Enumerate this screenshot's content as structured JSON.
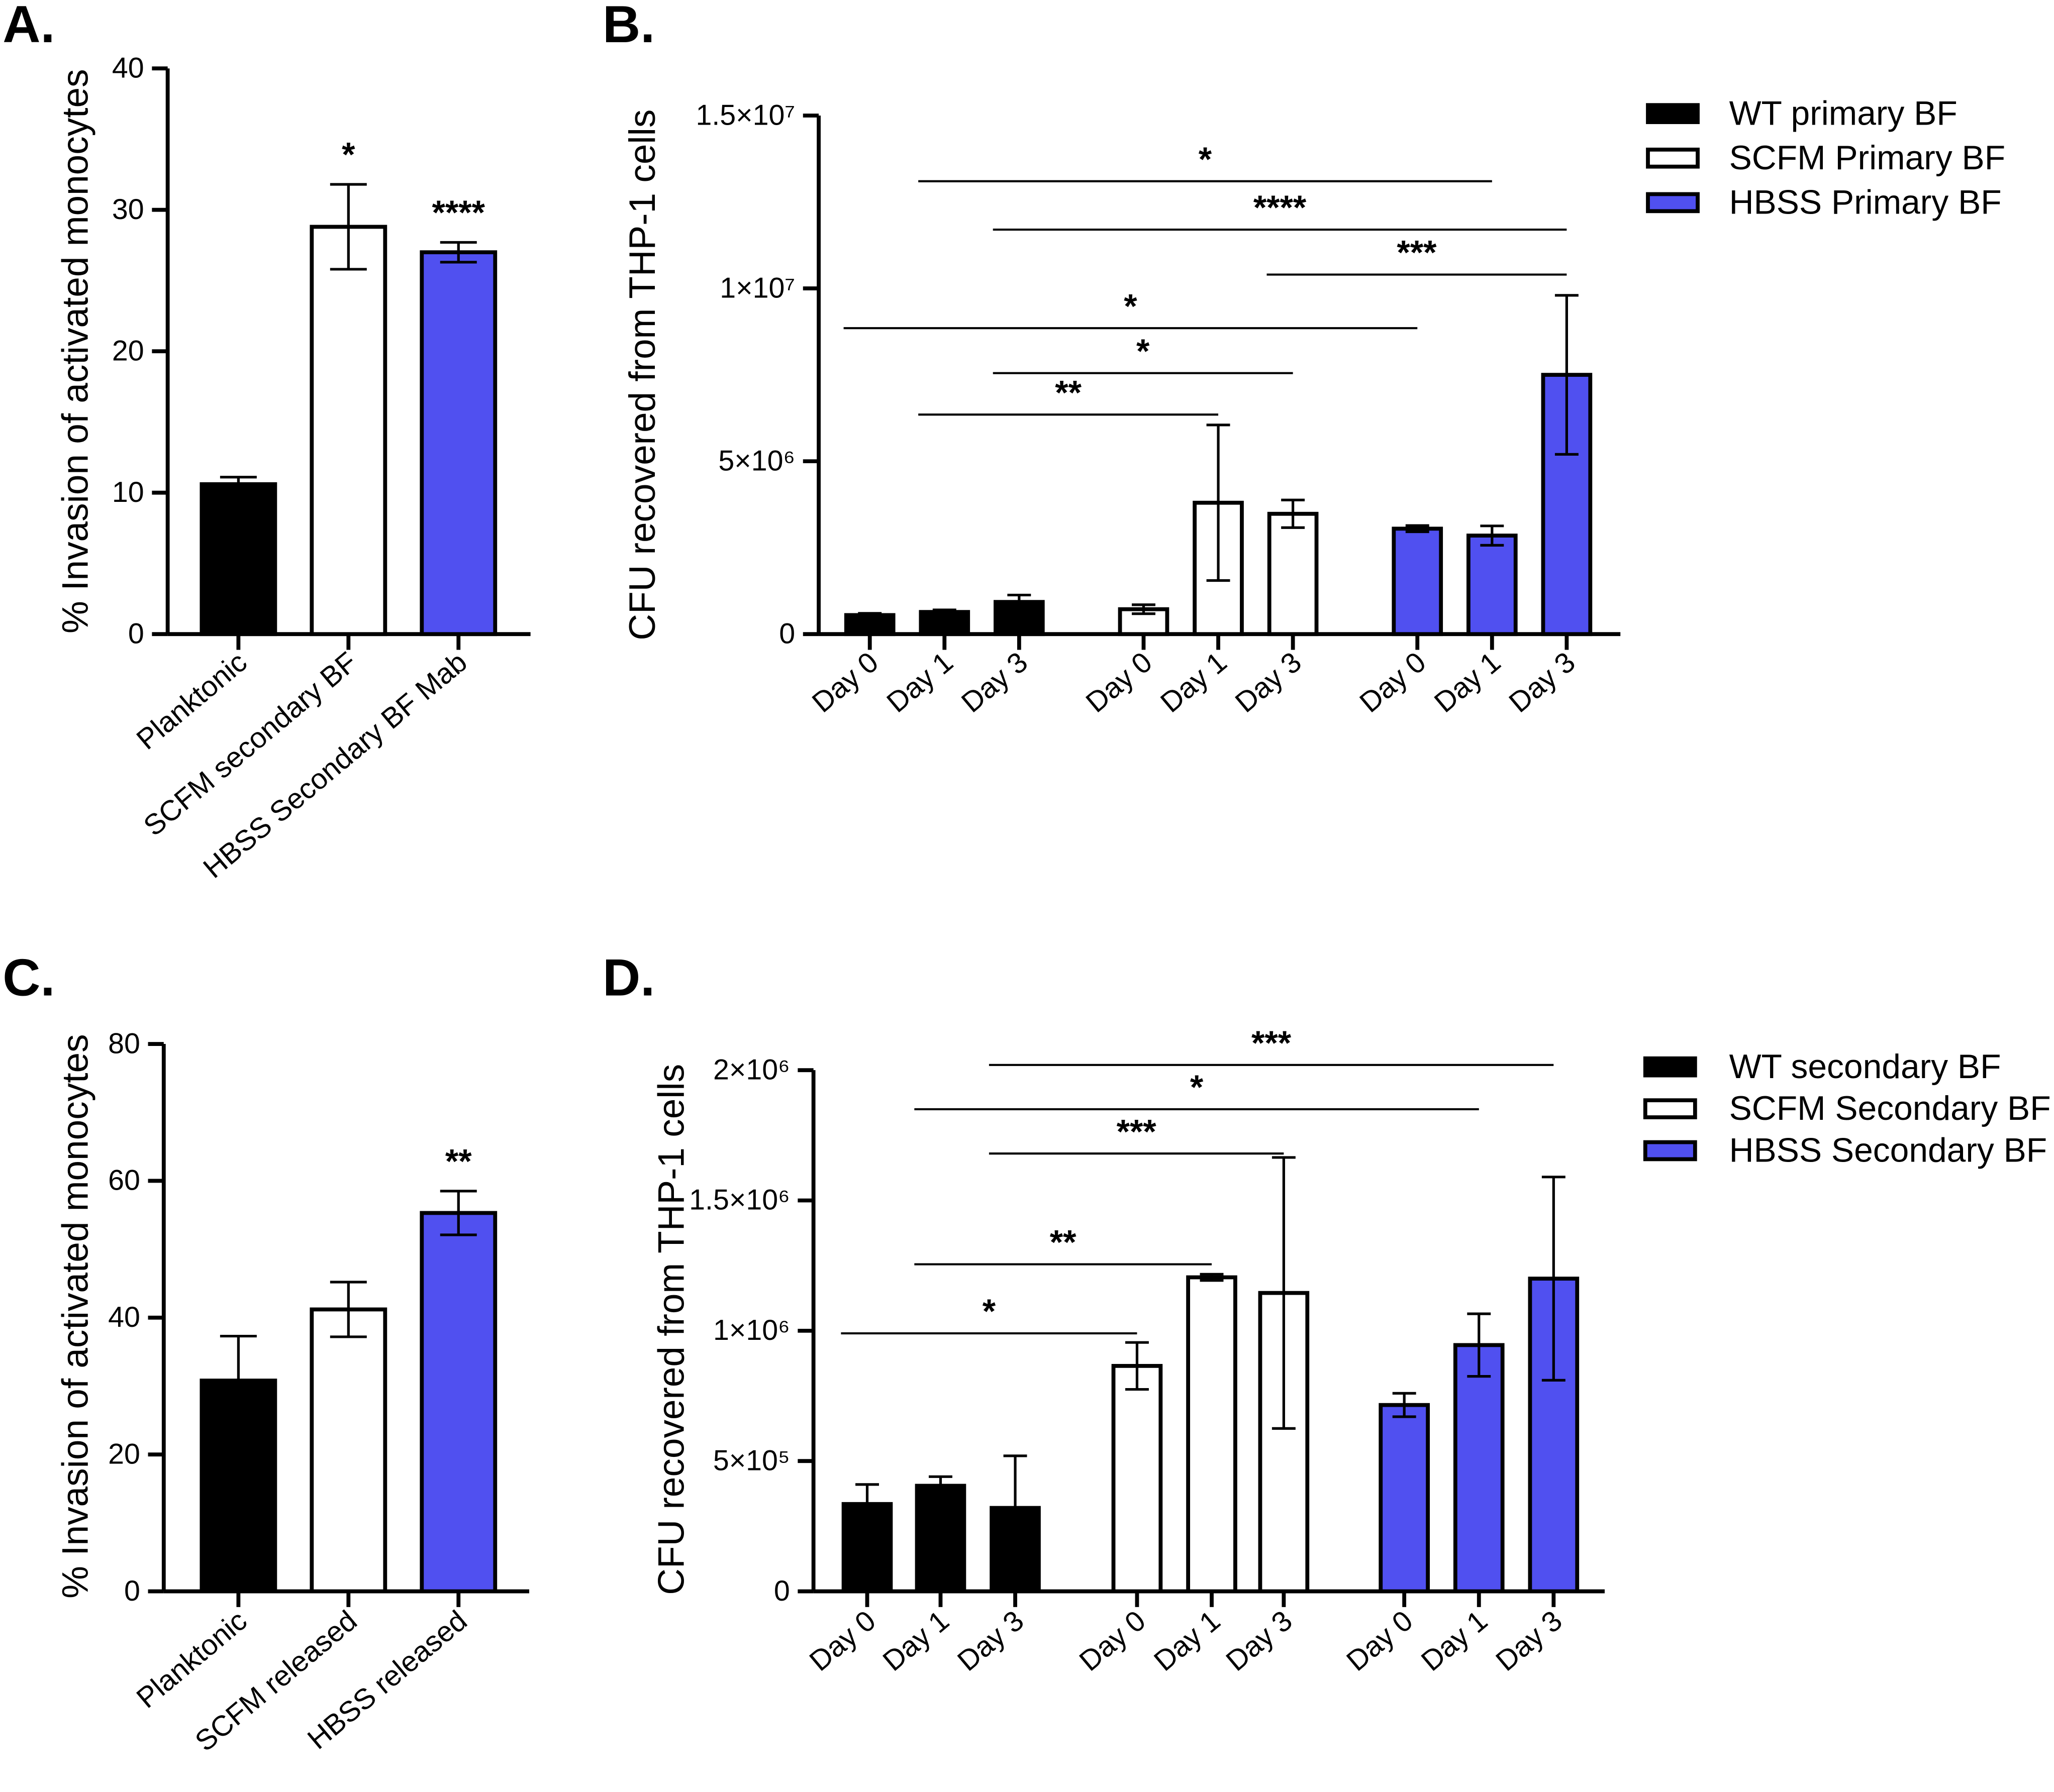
{
  "colors": {
    "black": "#000000",
    "white": "#ffffff",
    "blue": "#5050f0"
  },
  "chart_data": [
    {
      "panel": "A.",
      "type": "bar",
      "categories": [
        "Planktonic",
        "SCFM secondary BF",
        "HBSS Secondary BF Mab"
      ],
      "values": [
        10.6,
        28.8,
        27.0
      ],
      "errors": [
        0.5,
        3.0,
        0.7
      ],
      "fills": [
        "black",
        "white",
        "blue"
      ],
      "stars": [
        "",
        "*",
        "****"
      ],
      "ylabel": "% Invasion of activated monocytes",
      "ylim": [
        0,
        40
      ],
      "yticks": [
        0,
        10,
        20,
        30,
        40
      ],
      "ytick_labels": [
        "0",
        "10",
        "20",
        "30",
        "40"
      ]
    },
    {
      "panel": "B.",
      "type": "bar",
      "ylabel": "CFU recovered from THP-1 cells",
      "ylim": [
        0,
        15000000
      ],
      "yticks": [
        0,
        5000000,
        10000000,
        15000000
      ],
      "ytick_labels": [
        "0",
        "5×10⁶",
        "1×10⁷",
        "1.5×10⁷"
      ],
      "categories": [
        "Day 0",
        "Day 1",
        "Day 3"
      ],
      "series": [
        {
          "name": "WT primary BF",
          "fill": "black",
          "values": [
            550000,
            640000,
            930000
          ],
          "errors": [
            50000,
            60000,
            200000
          ]
        },
        {
          "name": "SCFM Primary BF",
          "fill": "white",
          "values": [
            720000,
            3800000,
            3480000
          ],
          "errors": [
            130000,
            2250000,
            400000
          ]
        },
        {
          "name": "HBSS Primary BF",
          "fill": "blue",
          "values": [
            3050000,
            2850000,
            7500000
          ],
          "errors": [
            90000,
            280000,
            2300000
          ]
        }
      ],
      "significance": [
        {
          "label": "*",
          "from": [
            0,
            1
          ],
          "to": [
            2,
            1
          ],
          "y": 13100000
        },
        {
          "label": "****",
          "from": [
            0,
            2
          ],
          "to": [
            2,
            2
          ],
          "y": 11700000
        },
        {
          "label": "***",
          "from": [
            1,
            2
          ],
          "to": [
            2,
            2
          ],
          "y": 10400000
        },
        {
          "label": "*",
          "from": [
            0,
            0
          ],
          "to": [
            2,
            0
          ],
          "y": 8850000
        },
        {
          "label": "*",
          "from": [
            0,
            2
          ],
          "to": [
            1,
            2
          ],
          "y": 7550000
        },
        {
          "label": "**",
          "from": [
            0,
            1
          ],
          "to": [
            1,
            1
          ],
          "y": 6350000
        }
      ]
    },
    {
      "panel": "C.",
      "type": "bar",
      "categories": [
        "Planktonic",
        "SCFM released",
        "HBSS released"
      ],
      "values": [
        30.8,
        41.2,
        55.3
      ],
      "errors": [
        6.5,
        4.0,
        3.2
      ],
      "fills": [
        "black",
        "white",
        "blue"
      ],
      "stars": [
        "",
        "",
        "**"
      ],
      "ylabel": "% Invasion of activated monocytes",
      "ylim": [
        0,
        80
      ],
      "yticks": [
        0,
        20,
        40,
        60,
        80
      ],
      "ytick_labels": [
        "0",
        "20",
        "40",
        "60",
        "80"
      ]
    },
    {
      "panel": "D.",
      "type": "bar",
      "ylabel": "CFU recovered from THP-1 cells",
      "ylim": [
        0,
        2000000
      ],
      "yticks": [
        0,
        500000,
        1000000,
        1500000,
        2000000
      ],
      "ytick_labels": [
        "0",
        "5×10⁵",
        "1×10⁶",
        "1.5×10⁶",
        "2×10⁶"
      ],
      "categories": [
        "Day 0",
        "Day 1",
        "Day 3"
      ],
      "series": [
        {
          "name": "WT secondary BF",
          "fill": "black",
          "values": [
            335000,
            405000,
            320000
          ],
          "errors": [
            75000,
            35000,
            200000
          ]
        },
        {
          "name": "SCFM Secondary BF",
          "fill": "white",
          "values": [
            865000,
            1205000,
            1145000
          ],
          "errors": [
            90000,
            12000,
            520000
          ]
        },
        {
          "name": "HBSS Secondary BF",
          "fill": "blue",
          "values": [
            715000,
            945000,
            1200000
          ],
          "errors": [
            45000,
            120000,
            390000
          ]
        }
      ],
      "significance": [
        {
          "label": "***",
          "from": [
            0,
            2
          ],
          "to": [
            2,
            2
          ],
          "y": 2020000
        },
        {
          "label": "*",
          "from": [
            0,
            1
          ],
          "to": [
            2,
            1
          ],
          "y": 1850000
        },
        {
          "label": "***",
          "from": [
            0,
            2
          ],
          "to": [
            1,
            2
          ],
          "y": 1680000
        },
        {
          "label": "**",
          "from": [
            0,
            1
          ],
          "to": [
            1,
            1
          ],
          "y": 1255000
        },
        {
          "label": "*",
          "from": [
            0,
            0
          ],
          "to": [
            1,
            0
          ],
          "y": 990000
        }
      ]
    }
  ]
}
